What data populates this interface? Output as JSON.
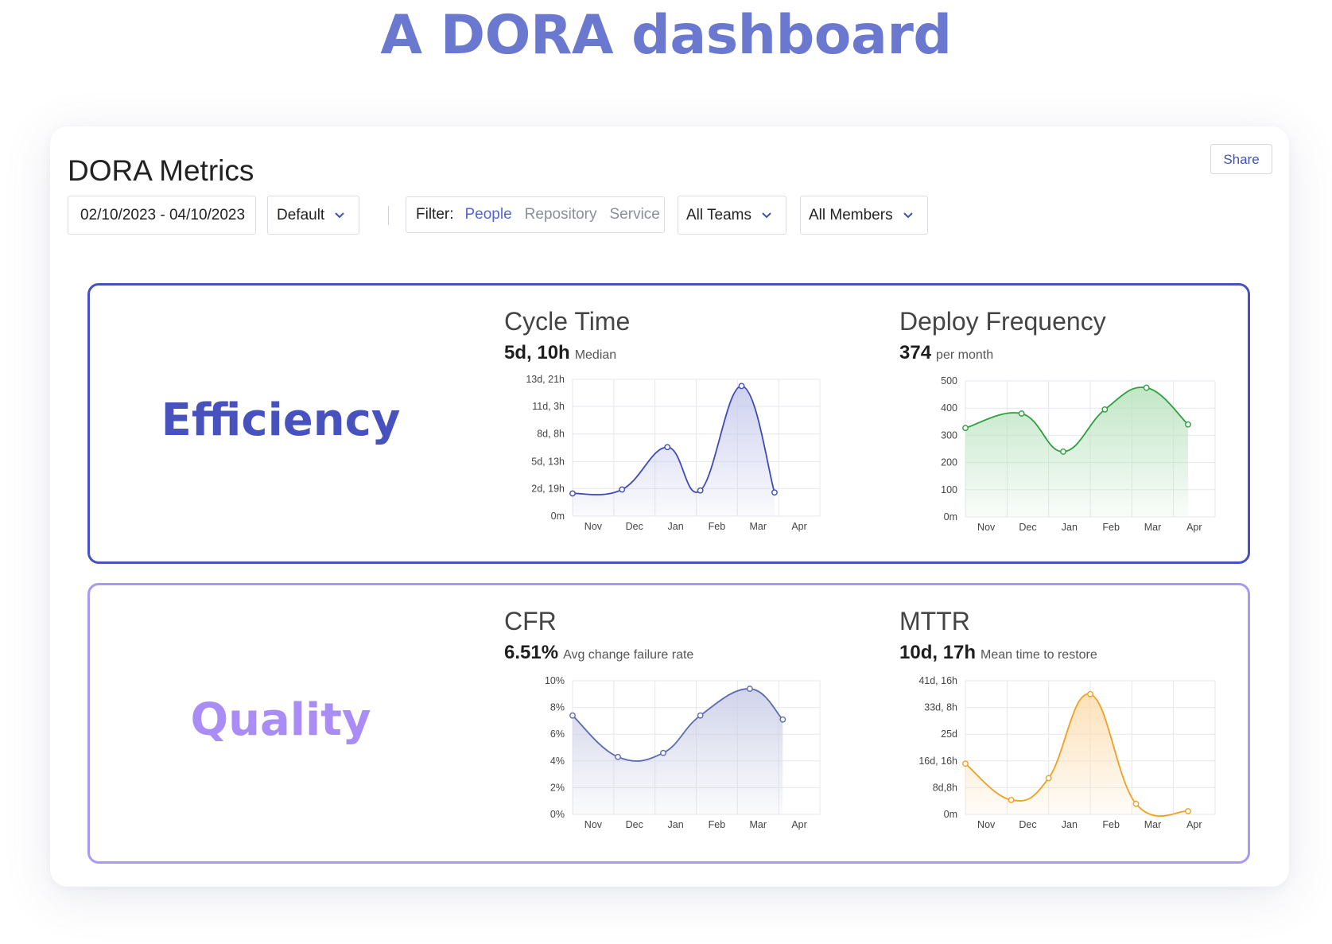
{
  "page": {
    "title": "A DORA dashboard"
  },
  "dashboard": {
    "heading": "DORA Metrics",
    "share_label": "Share",
    "date_range": "02/10/2023 - 04/10/2023",
    "preset": "Default",
    "filter": {
      "label": "Filter:",
      "options": [
        "People",
        "Repository",
        "Service"
      ],
      "active": "People"
    },
    "teams": "All Teams",
    "members": "All Members"
  },
  "sections": {
    "efficiency": {
      "title": "Efficiency",
      "cycle_time": {
        "title": "Cycle Time",
        "value": "5d, 10h",
        "sub": "Median"
      },
      "deploy_frequency": {
        "title": "Deploy Frequency",
        "value": "374",
        "sub": "per month"
      }
    },
    "quality": {
      "title": "Quality",
      "cfr": {
        "title": "CFR",
        "value": "6.51%",
        "sub": "Avg change failure rate"
      },
      "mttr": {
        "title": "MTTR",
        "value": "10d,  17h",
        "sub": "Mean time to restore"
      }
    }
  },
  "chart_data": [
    {
      "id": "cycle_time",
      "type": "area",
      "color": "#3f4ab8",
      "fill": "#c5c9ec",
      "categories": [
        "Nov",
        "Dec",
        "Jan",
        "Feb",
        "Mar",
        "Apr"
      ],
      "ylim": [
        0,
        13.875
      ],
      "ytick_values": [
        0,
        2.79,
        5.54,
        8.33,
        11.13,
        13.875
      ],
      "ytick_labels": [
        "0m",
        "2d, 19h",
        "5d, 13h",
        "8d, 8h",
        "11d, 3h",
        "13d, 21h"
      ],
      "x": [
        -0.5,
        0.7,
        1.8,
        2.6,
        3.6,
        4.4
      ],
      "y": [
        2.3,
        2.7,
        7.0,
        2.6,
        13.2,
        2.4
      ]
    },
    {
      "id": "deploy_frequency",
      "type": "area",
      "color": "#2e9e3e",
      "fill": "#b7e2bc",
      "categories": [
        "Nov",
        "Dec",
        "Jan",
        "Feb",
        "Mar",
        "Apr"
      ],
      "ylim": [
        0,
        500
      ],
      "ytick_values": [
        0,
        100,
        200,
        300,
        400,
        500
      ],
      "ytick_labels": [
        "0m",
        "100",
        "200",
        "300",
        "400",
        "500"
      ],
      "x": [
        -0.5,
        0.85,
        1.85,
        2.85,
        3.85,
        4.85
      ],
      "y": [
        327,
        380,
        240,
        395,
        475,
        340
      ]
    },
    {
      "id": "cfr",
      "type": "area",
      "color": "#5b6bb0",
      "fill": "#c9cde6",
      "categories": [
        "Nov",
        "Dec",
        "Jan",
        "Feb",
        "Mar",
        "Apr"
      ],
      "ylim": [
        0,
        10
      ],
      "ytick_values": [
        0,
        2,
        4,
        6,
        8,
        10
      ],
      "ytick_labels": [
        "0%",
        "2%",
        "4%",
        "6%",
        "8%",
        "10%"
      ],
      "x": [
        -0.5,
        0.6,
        1.7,
        2.6,
        3.8,
        4.6
      ],
      "y": [
        7.4,
        4.3,
        4.6,
        7.4,
        9.4,
        7.1
      ]
    },
    {
      "id": "mttr",
      "type": "area",
      "color": "#f0a020",
      "fill": "#fcdcad",
      "categories": [
        "Nov",
        "Dec",
        "Jan",
        "Feb",
        "Mar",
        "Apr"
      ],
      "ylim": [
        0,
        41.67
      ],
      "ytick_values": [
        0,
        8.33,
        16.67,
        25,
        33.33,
        41.67
      ],
      "ytick_labels": [
        "0m",
        "8d,8h",
        "16d, 16h",
        "25d",
        "33d, 8h",
        "41d, 16h"
      ],
      "x": [
        -0.5,
        0.6,
        1.5,
        2.5,
        3.6,
        4.85
      ],
      "y": [
        15.8,
        4.5,
        11.3,
        37.5,
        3.3,
        1.0
      ]
    }
  ]
}
